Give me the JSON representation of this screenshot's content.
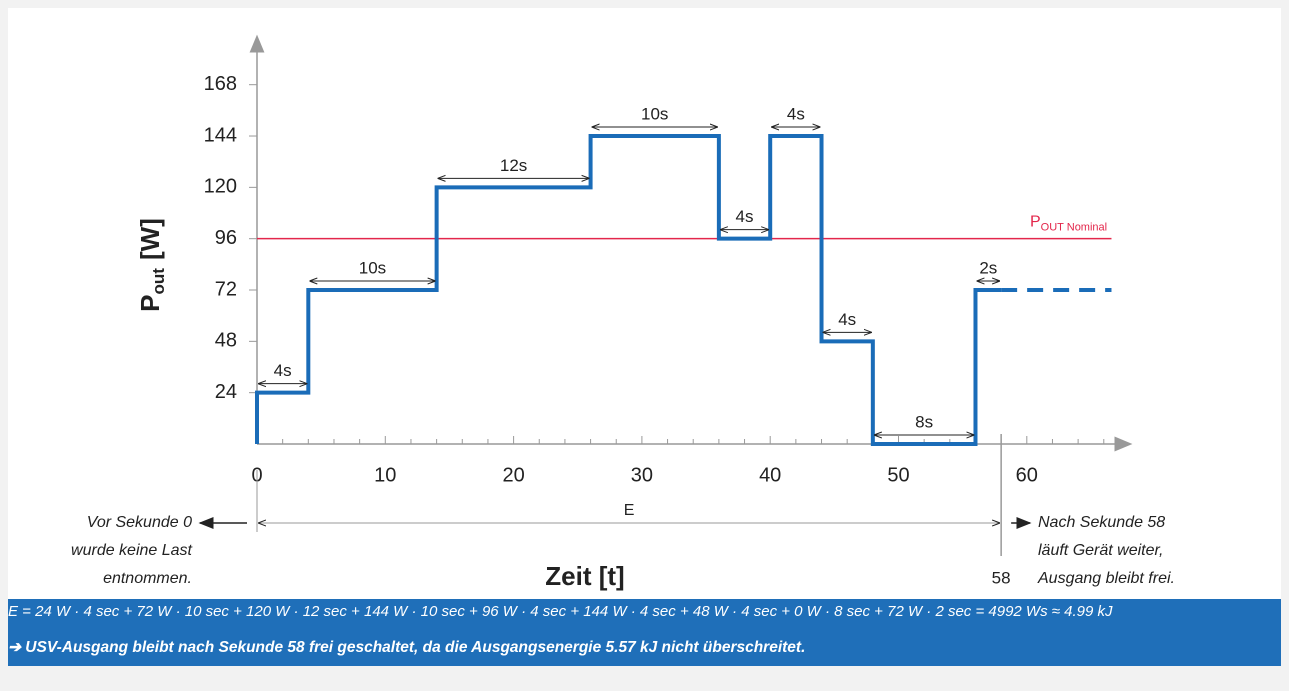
{
  "chart_data": {
    "type": "line",
    "x_label": "Zeit [t]",
    "y_label": [
      "P",
      "out",
      "[W]"
    ],
    "xlim": [
      0,
      68
    ],
    "ylim": [
      0,
      190
    ],
    "xticks": [
      0,
      10,
      20,
      30,
      40,
      50,
      60
    ],
    "xminorticks": [
      2,
      4,
      6,
      8,
      12,
      14,
      16,
      18,
      22,
      24,
      26,
      28,
      32,
      34,
      36,
      38,
      42,
      44,
      46,
      48,
      52,
      54,
      56,
      58,
      62,
      64,
      66
    ],
    "yticks": [
      24,
      48,
      72,
      96,
      120,
      144,
      168
    ],
    "series": [
      {
        "color": "#1a6cb8",
        "dash": false,
        "x": [
          0,
          0,
          4,
          4,
          14,
          14,
          26,
          26,
          36,
          36,
          40,
          40,
          44,
          44,
          48,
          48,
          56,
          56,
          58
        ],
        "values": [
          0,
          24,
          24,
          72,
          72,
          120,
          120,
          144,
          144,
          96,
          96,
          144,
          144,
          48,
          48,
          0,
          0,
          72,
          72
        ]
      },
      {
        "color": "#1a6cb8",
        "dash": true,
        "x": [
          58,
          66.6
        ],
        "values": [
          72,
          72
        ]
      }
    ],
    "reference_line": {
      "value": 96,
      "label": [
        "P",
        "OUT Nominal"
      ],
      "color": "#e3264b"
    },
    "durations": [
      {
        "label": "4s",
        "x0": 0,
        "x1": 4,
        "y": 24
      },
      {
        "label": "10s",
        "x0": 4,
        "x1": 14,
        "y": 72
      },
      {
        "label": "12s",
        "x0": 14,
        "x1": 26,
        "y": 120
      },
      {
        "label": "10s",
        "x0": 26,
        "x1": 36,
        "y": 144
      },
      {
        "label": "4s",
        "x0": 36,
        "x1": 40,
        "y": 96
      },
      {
        "label": "4s",
        "x0": 40,
        "x1": 44,
        "y": 144
      },
      {
        "label": "4s",
        "x0": 44,
        "x1": 48,
        "y": 48
      },
      {
        "label": "8s",
        "x0": 48,
        "x1": 56,
        "y": 0
      },
      {
        "label": "2s",
        "x0": 56,
        "x1": 58,
        "y": 72
      }
    ],
    "energy": {
      "label": "E",
      "x0": 0,
      "x1": 58
    },
    "note_left": [
      "Vor Sekunde 0",
      "wurde keine Last",
      "entnommen."
    ],
    "note_right": [
      "Nach Sekunde 58",
      "läuft Gerät weiter,",
      "Ausgang bleibt frei."
    ]
  },
  "footer": {
    "formula": "E = 24 W · 4 sec + 72 W · 10 sec + 120 W · 12 sec + 144 W · 10 sec + 96 W · 4 sec + 144 W · 4 sec + 48 W · 4 sec + 0 W · 8 sec + 72 W · 2 sec = 4992 Ws ≈ 4.99 kJ",
    "conclusion": "➔ USV-Ausgang bleibt nach Sekunde 58 frei geschaltet, da die Ausgangsenergie 5.57 kJ nicht überschreitet."
  }
}
